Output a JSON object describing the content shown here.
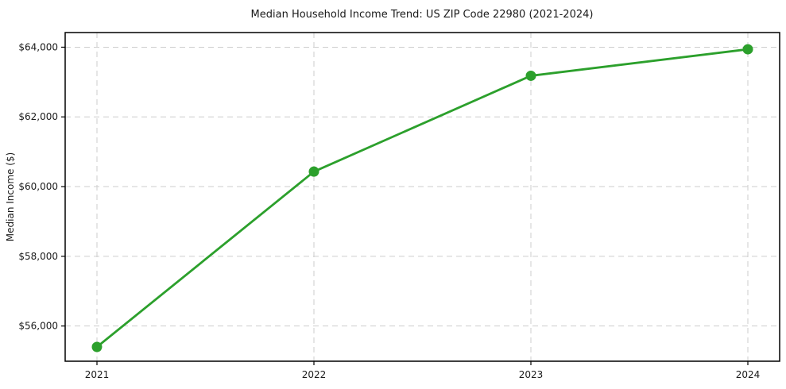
{
  "figure": {
    "background": "#ffffff"
  },
  "chart_data": {
    "type": "line",
    "title": "Median Household Income Trend: US ZIP Code 22980 (2021-2024)",
    "xlabel": "",
    "ylabel": "Median Income ($)",
    "x": [
      "2021",
      "2022",
      "2023",
      "2024"
    ],
    "series": [
      {
        "name": "median-household-income",
        "values": [
          55400,
          60430,
          63180,
          63940
        ],
        "color": "#2ca02c",
        "marker": "circle",
        "line_width": 2.8,
        "marker_radius": 6.5
      }
    ],
    "ylim": [
      54990,
      64420
    ],
    "yticks": {
      "values": [
        56000,
        58000,
        60000,
        62000,
        64000
      ],
      "labels": [
        "$56,000",
        "$58,000",
        "$60,000",
        "$62,000",
        "$64,000"
      ]
    },
    "grid": {
      "visible": true,
      "style": "dashed",
      "color": "#cdcdcd"
    },
    "legend": "none",
    "axis_color": "#000000"
  }
}
